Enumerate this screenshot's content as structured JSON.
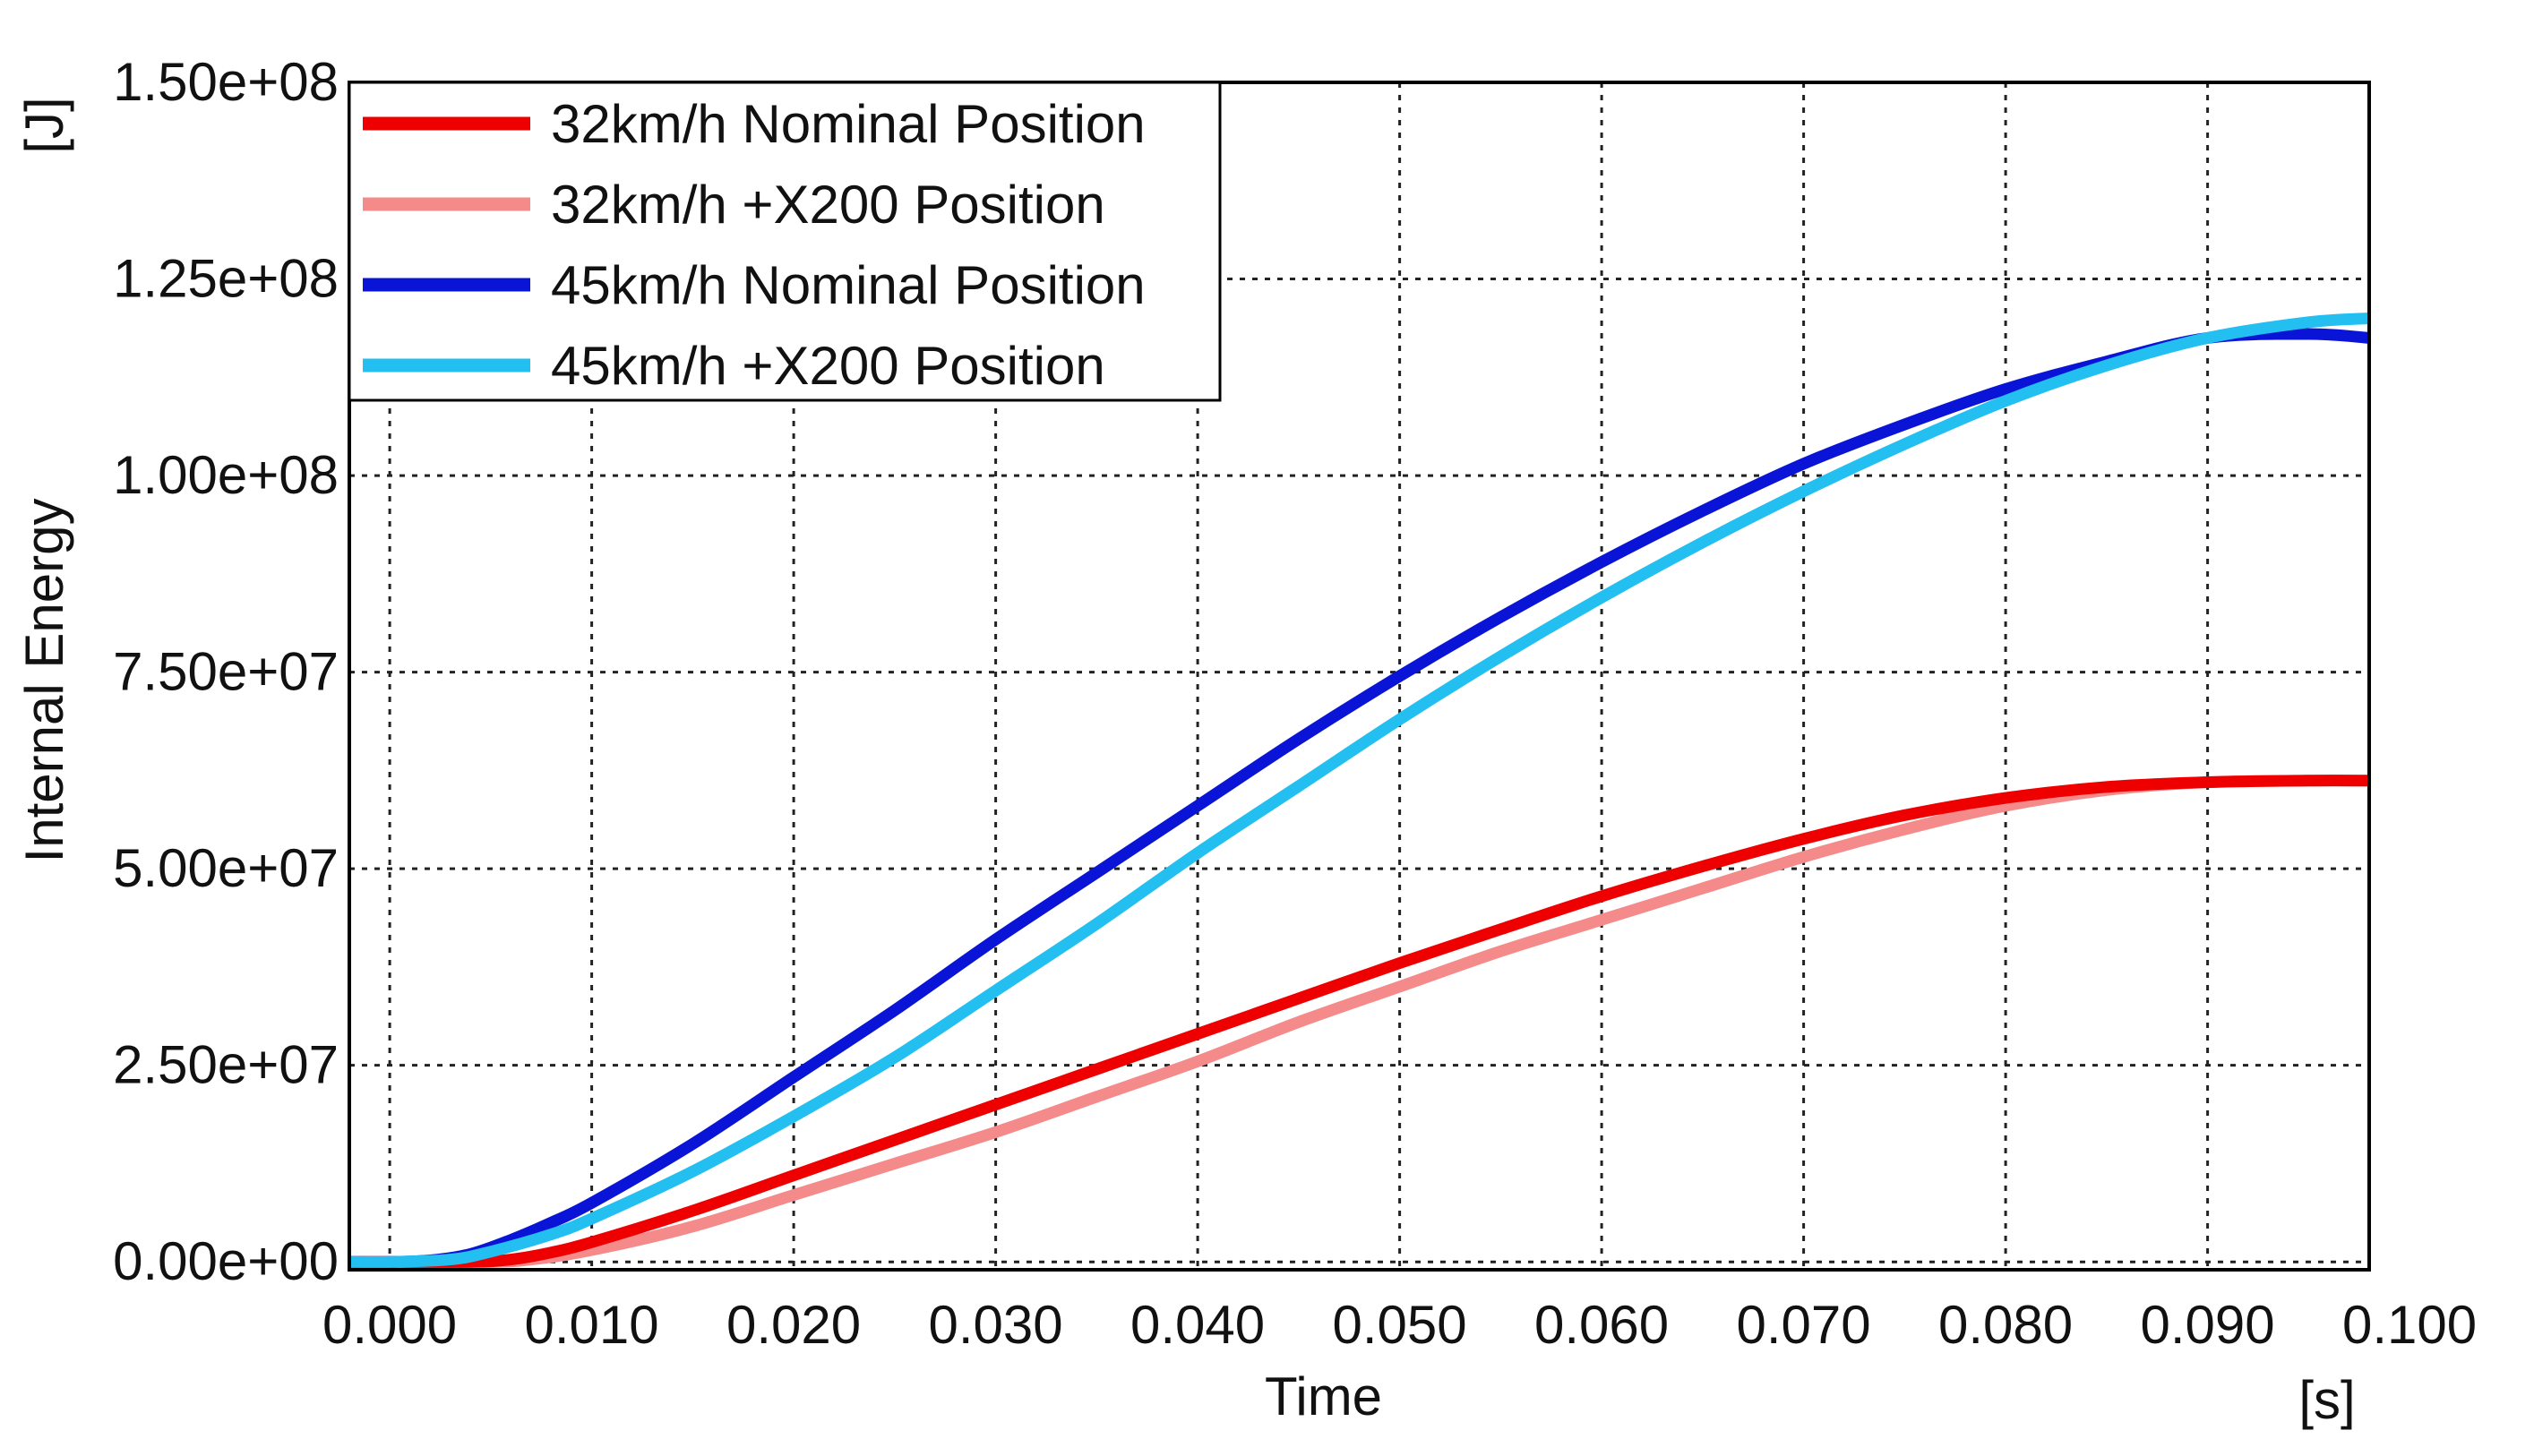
{
  "chart_data": {
    "type": "line",
    "title": "",
    "xlabel": "Time",
    "xunit": "[s]",
    "ylabel": "Internal Energy",
    "yunit": "[J]",
    "xlim": [
      -0.002,
      0.098
    ],
    "ylim": [
      -1000000,
      150000000
    ],
    "grid": true,
    "legend_position": "top-left",
    "xticks": [
      0.0,
      0.01,
      0.02,
      0.03,
      0.04,
      0.05,
      0.06,
      0.07,
      0.08,
      0.09,
      0.1
    ],
    "xtick_labels": [
      "0.000",
      "0.010",
      "0.020",
      "0.030",
      "0.040",
      "0.050",
      "0.060",
      "0.070",
      "0.080",
      "0.090",
      "0.100"
    ],
    "yticks": [
      0,
      25000000,
      50000000,
      75000000,
      100000000,
      125000000,
      150000000
    ],
    "ytick_labels": [
      "0.00e+00",
      "2.50e+07",
      "5.00e+07",
      "7.50e+07",
      "1.00e+08",
      "1.25e+08",
      "1.50e+08"
    ],
    "series": [
      {
        "name": "32km/h Nominal Position",
        "color": "#ee0000",
        "x": [
          -0.002,
          0.0,
          0.004,
          0.006,
          0.008,
          0.01,
          0.015,
          0.02,
          0.025,
          0.03,
          0.035,
          0.04,
          0.045,
          0.05,
          0.055,
          0.06,
          0.065,
          0.07,
          0.075,
          0.08,
          0.085,
          0.09,
          0.095,
          0.098
        ],
        "y": [
          0,
          0,
          0,
          300000,
          1200000,
          2500000,
          6500000,
          11000000,
          15500000,
          20000000,
          24500000,
          29000000,
          33500000,
          38000000,
          42300000,
          46500000,
          50300000,
          53800000,
          56800000,
          59000000,
          60400000,
          61000000,
          61200000,
          61200000
        ]
      },
      {
        "name": "32km/h +X200 Position",
        "color": "#f48a8a",
        "x": [
          -0.002,
          0.0,
          0.005,
          0.007,
          0.01,
          0.015,
          0.02,
          0.025,
          0.03,
          0.035,
          0.04,
          0.045,
          0.05,
          0.055,
          0.06,
          0.065,
          0.07,
          0.075,
          0.08,
          0.085,
          0.09,
          0.095,
          0.098
        ],
        "y": [
          0,
          0,
          0,
          300000,
          1500000,
          4500000,
          8500000,
          12500000,
          16500000,
          21000000,
          25500000,
          30500000,
          35000000,
          39500000,
          43500000,
          47500000,
          51500000,
          55000000,
          58000000,
          60000000,
          61000000,
          61200000,
          61200000
        ]
      },
      {
        "name": "45km/h Nominal Position",
        "color": "#0a14d6",
        "x": [
          -0.002,
          0.0,
          0.002,
          0.004,
          0.006,
          0.008,
          0.01,
          0.015,
          0.02,
          0.025,
          0.03,
          0.035,
          0.04,
          0.045,
          0.05,
          0.055,
          0.06,
          0.065,
          0.07,
          0.075,
          0.08,
          0.085,
          0.09,
          0.095,
          0.098
        ],
        "y": [
          0,
          0,
          200000,
          1000000,
          2800000,
          5000000,
          7500000,
          15000000,
          23500000,
          32000000,
          41000000,
          49500000,
          58000000,
          66500000,
          74500000,
          82000000,
          89000000,
          95500000,
          101500000,
          106500000,
          111000000,
          114500000,
          117500000,
          118000000,
          117500000
        ]
      },
      {
        "name": "45km/h +X200 Position",
        "color": "#22bff0",
        "x": [
          -0.002,
          0.0,
          0.003,
          0.005,
          0.008,
          0.01,
          0.015,
          0.02,
          0.025,
          0.03,
          0.035,
          0.04,
          0.045,
          0.05,
          0.055,
          0.06,
          0.065,
          0.07,
          0.075,
          0.08,
          0.085,
          0.09,
          0.095,
          0.098
        ],
        "y": [
          0,
          0,
          300000,
          1300000,
          3500000,
          5500000,
          11500000,
          18500000,
          26000000,
          34500000,
          43000000,
          52000000,
          60500000,
          69000000,
          77000000,
          84500000,
          91500000,
          98000000,
          104000000,
          109500000,
          114000000,
          117500000,
          119500000,
          120000000
        ]
      }
    ]
  }
}
